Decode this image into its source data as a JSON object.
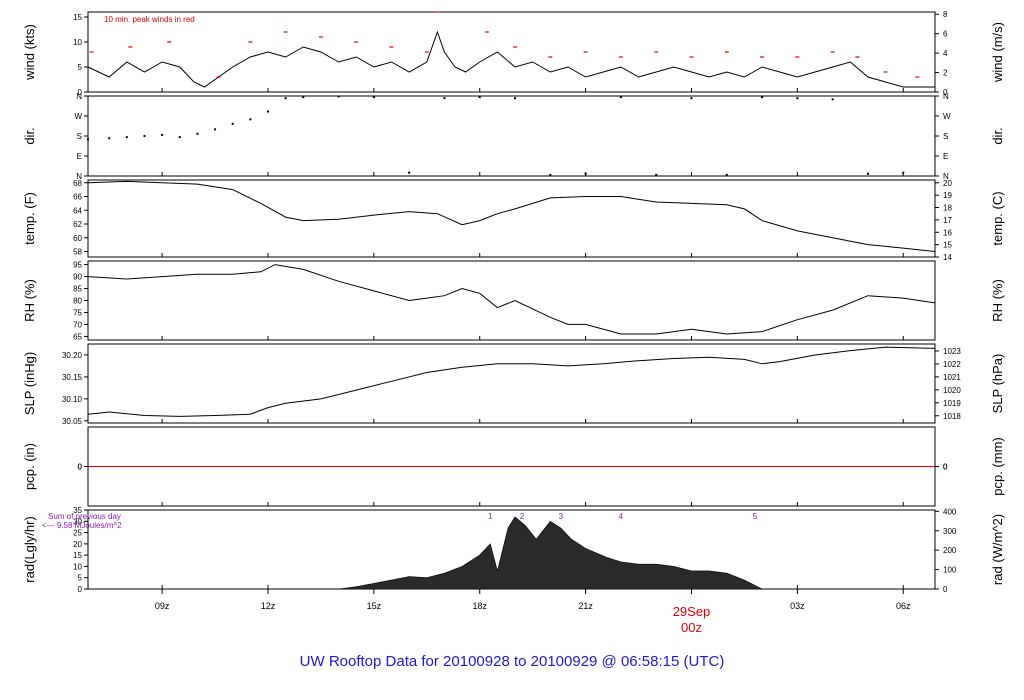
{
  "title": "UW Rooftop Data for 20100928  to  20100929 @ 06:58:15  (UTC)",
  "x_ticks": [
    "09z",
    "12z",
    "15z",
    "18z",
    "21z",
    "00z",
    "03z",
    "06z"
  ],
  "x_tick_hours": [
    9,
    12,
    15,
    18,
    21,
    24,
    27,
    30
  ],
  "x_range_hours": [
    6.9,
    30.9
  ],
  "date_label": "29Sep",
  "date_tick": "00z",
  "colors": {
    "line": "#000000",
    "peak": "#e00000",
    "precip_line": "#e00000",
    "title": "#1a1ad0",
    "note_purple": "#8a1ab0",
    "radiation_fill": "#2a2a2a"
  },
  "chart_data": [
    {
      "type": "line",
      "name": "wind",
      "ylabel": "wind (kts)",
      "ylabel_right": "wind (m/s)",
      "ylim": [
        0,
        16
      ],
      "yticks": [
        0,
        5,
        10,
        15
      ],
      "right_ylim": [
        0,
        8.23
      ],
      "right_yticks": [
        0,
        2,
        4,
        6,
        8
      ],
      "annotation": "10 min. peak winds in red",
      "x": [
        6.9,
        7.5,
        8.0,
        8.5,
        9.0,
        9.5,
        9.9,
        10.2,
        10.6,
        11.0,
        11.5,
        12.0,
        12.5,
        13.0,
        13.5,
        14.0,
        14.5,
        15.0,
        15.5,
        16.0,
        16.5,
        16.8,
        17.0,
        17.3,
        17.6,
        18.0,
        18.5,
        19.0,
        19.5,
        20.0,
        20.5,
        21.0,
        21.5,
        22.0,
        22.5,
        23.0,
        23.5,
        24.0,
        24.5,
        25.0,
        25.5,
        26.0,
        26.5,
        27.0,
        27.5,
        28.0,
        28.5,
        29.0,
        29.5,
        30.0,
        30.5,
        30.9
      ],
      "y": [
        5,
        3,
        6,
        4,
        6,
        5,
        2,
        1,
        3,
        5,
        7,
        8,
        7,
        9,
        8,
        6,
        7,
        5,
        6,
        4,
        6,
        12,
        8,
        5,
        4,
        6,
        8,
        5,
        6,
        4,
        5,
        3,
        4,
        5,
        3,
        4,
        5,
        4,
        3,
        4,
        3,
        5,
        4,
        3,
        4,
        5,
        6,
        3,
        2,
        1,
        1,
        1
      ],
      "peaks_x": [
        7.0,
        8.1,
        9.2,
        10.6,
        11.5,
        12.5,
        13.5,
        14.5,
        15.5,
        16.5,
        16.8,
        18.2,
        19.0,
        20.0,
        21.0,
        22.0,
        23.0,
        24.0,
        25.0,
        26.0,
        27.0,
        28.0,
        28.7,
        29.5,
        30.4
      ],
      "peaks_y": [
        8,
        9,
        10,
        3,
        10,
        12,
        11,
        10,
        9,
        8,
        16,
        12,
        9,
        7,
        8,
        7,
        8,
        7,
        8,
        7,
        7,
        8,
        7,
        4,
        3
      ]
    },
    {
      "type": "scatter",
      "name": "dir.",
      "ylabel": "dir.",
      "ylabel_right": "dir.",
      "yticks_labels": [
        "N",
        "E",
        "S",
        "W",
        "N"
      ],
      "ylim": [
        0,
        360
      ],
      "x": [
        6.9,
        7.5,
        8.0,
        8.5,
        9.0,
        9.5,
        10.0,
        10.5,
        11.0,
        11.5,
        12.0,
        12.5,
        13.0,
        14.0,
        15.0,
        16.0,
        17.0,
        18.0,
        19.0,
        20.0,
        21.0,
        22.0,
        23.0,
        24.0,
        25.0,
        26.0,
        27.0,
        28.0,
        29.0,
        30.0
      ],
      "y": [
        165,
        170,
        175,
        180,
        185,
        175,
        190,
        210,
        235,
        255,
        290,
        350,
        355,
        358,
        355,
        15,
        350,
        355,
        350,
        5,
        10,
        355,
        5,
        350,
        5,
        355,
        350,
        345,
        10,
        15
      ]
    },
    {
      "type": "line",
      "name": "temp.",
      "ylabel": "temp. (F)",
      "ylabel_right": "temp. (C)",
      "ylim": [
        57.2,
        68.4
      ],
      "yticks": [
        58,
        60,
        62,
        64,
        66,
        68
      ],
      "right_yticks": [
        14,
        15,
        16,
        17,
        18,
        19,
        20
      ],
      "x": [
        6.9,
        8.0,
        9.0,
        10.0,
        11.0,
        11.8,
        12.5,
        13.0,
        14.0,
        15.0,
        16.0,
        16.8,
        17.5,
        18.0,
        18.5,
        19.0,
        20.0,
        21.0,
        22.0,
        23.0,
        24.0,
        25.0,
        25.5,
        26.0,
        27.0,
        28.0,
        29.0,
        30.0,
        30.9
      ],
      "y": [
        68.0,
        68.2,
        68.0,
        67.8,
        67.0,
        65.0,
        63.0,
        62.5,
        62.7,
        63.3,
        63.8,
        63.5,
        61.9,
        62.5,
        63.5,
        64.2,
        65.8,
        66.0,
        66.0,
        65.2,
        65.0,
        64.8,
        64.2,
        62.5,
        61.0,
        60.0,
        59.0,
        58.5,
        58.0
      ]
    },
    {
      "type": "line",
      "name": "RH",
      "ylabel": "RH (%)",
      "ylabel_right": "RH (%)",
      "ylim": [
        63.5,
        96.5
      ],
      "yticks": [
        65,
        70,
        75,
        80,
        85,
        90,
        95
      ],
      "x": [
        6.9,
        8.0,
        9.0,
        10.0,
        11.0,
        11.8,
        12.2,
        13.0,
        14.0,
        15.0,
        16.0,
        16.5,
        17.0,
        17.5,
        18.0,
        18.5,
        19.0,
        20.0,
        20.5,
        21.0,
        22.0,
        23.0,
        24.0,
        25.0,
        26.0,
        27.0,
        28.0,
        29.0,
        30.0,
        30.9
      ],
      "y": [
        90,
        89,
        90,
        91,
        91,
        92,
        95,
        93,
        88,
        84,
        80,
        81,
        82,
        85,
        83,
        77,
        80,
        73,
        70,
        70,
        66,
        66,
        68,
        66,
        67,
        72,
        76,
        82,
        81,
        79
      ]
    },
    {
      "type": "line",
      "name": "SLP",
      "ylabel": "SLP (inHg)",
      "ylabel_right": "SLP (hPa)",
      "ylim": [
        30.045,
        30.225
      ],
      "yticks": [
        30.05,
        30.1,
        30.15,
        30.2
      ],
      "ytick_labels": [
        "30.05",
        "30.10",
        "30.15",
        "30.20"
      ],
      "right_yticks": [
        1018,
        1019,
        1020,
        1021,
        1022,
        1023
      ],
      "x": [
        6.9,
        7.5,
        8.5,
        9.5,
        10.5,
        11.5,
        12.0,
        12.5,
        13.5,
        14.5,
        15.5,
        16.5,
        17.5,
        18.5,
        19.5,
        20.5,
        21.5,
        22.5,
        23.5,
        24.5,
        25.5,
        26.0,
        26.5,
        27.5,
        28.5,
        29.5,
        30.9
      ],
      "y": [
        30.065,
        30.07,
        30.062,
        30.06,
        30.062,
        30.065,
        30.08,
        30.09,
        30.1,
        30.12,
        30.14,
        30.16,
        30.172,
        30.18,
        30.18,
        30.175,
        30.18,
        30.187,
        30.192,
        30.195,
        30.19,
        30.18,
        30.185,
        30.2,
        30.21,
        30.218,
        30.215
      ]
    },
    {
      "type": "line",
      "name": "pcp.",
      "ylabel": "pcp. (in)",
      "ylabel_right": "pcp. (mm)",
      "yticks": [
        0
      ],
      "right_yticks": [
        0
      ],
      "x": [
        6.9,
        30.9
      ],
      "y": [
        0,
        0
      ]
    },
    {
      "type": "area",
      "name": "rad",
      "ylabel": "rad(Lgly/hr)",
      "ylabel_right": "rad (W/m^2)",
      "ylim": [
        0,
        35
      ],
      "yticks": [
        0,
        5,
        10,
        15,
        20,
        25,
        30,
        35
      ],
      "right_ylim": [
        0,
        406.9
      ],
      "right_yticks": [
        0,
        100,
        200,
        300,
        400
      ],
      "annotation_line1": "Sum of previous day",
      "annotation_line2": "<--- 9.58 MJoules/m^2",
      "markers": [
        "1",
        "2",
        "3",
        "4",
        "5"
      ],
      "marker_hours": [
        18.3,
        19.2,
        20.3,
        22.0,
        25.8
      ],
      "x": [
        14.0,
        14.5,
        15.0,
        15.5,
        16.0,
        16.5,
        17.0,
        17.5,
        18.0,
        18.3,
        18.5,
        18.8,
        19.0,
        19.3,
        19.6,
        20.0,
        20.3,
        20.6,
        21.0,
        21.3,
        21.6,
        22.0,
        22.5,
        23.0,
        23.5,
        24.0,
        24.5,
        25.0,
        25.5,
        26.0
      ],
      "y": [
        0,
        1,
        2.5,
        4,
        5.5,
        5,
        7,
        10,
        15,
        20,
        8,
        27,
        32,
        28,
        22,
        30,
        27,
        22,
        18,
        16,
        14,
        12,
        11,
        11,
        10,
        8,
        8,
        7,
        4,
        0
      ]
    }
  ]
}
